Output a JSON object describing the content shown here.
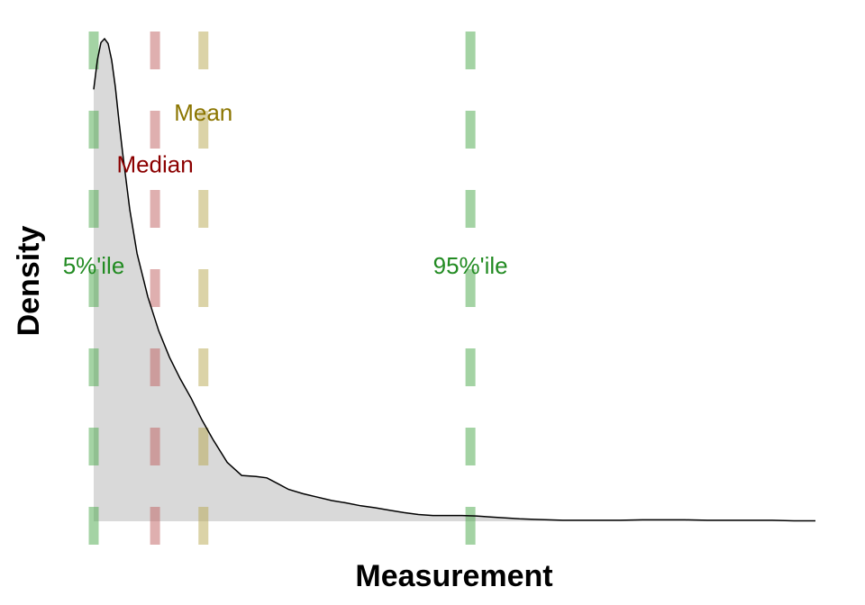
{
  "chart_data": {
    "type": "area",
    "xlabel": "Measurement",
    "ylabel": "Density",
    "x_axis_ticks": false,
    "y_axis_ticks": false,
    "grid": false,
    "legend": "none",
    "xlim": [
      0,
      1
    ],
    "ylim": [
      0,
      1
    ],
    "fill_color": "#d9d9d9",
    "line_color": "#000000",
    "density_curve": {
      "x": [
        0.0,
        0.005,
        0.01,
        0.015,
        0.02,
        0.025,
        0.03,
        0.035,
        0.04,
        0.05,
        0.06,
        0.075,
        0.09,
        0.105,
        0.12,
        0.135,
        0.15,
        0.165,
        0.185,
        0.205,
        0.225,
        0.24,
        0.255,
        0.27,
        0.29,
        0.31,
        0.33,
        0.35,
        0.37,
        0.39,
        0.41,
        0.43,
        0.45,
        0.47,
        0.49,
        0.51,
        0.53,
        0.55,
        0.57,
        0.59,
        0.61,
        0.63,
        0.65,
        0.67,
        0.69,
        0.71,
        0.73,
        0.76,
        0.79,
        0.82,
        0.85,
        0.88,
        0.91,
        0.94,
        0.97,
        1.0
      ],
      "y": [
        0.895,
        0.955,
        0.992,
        1.0,
        0.99,
        0.955,
        0.9,
        0.83,
        0.765,
        0.645,
        0.555,
        0.465,
        0.395,
        0.34,
        0.295,
        0.255,
        0.21,
        0.17,
        0.122,
        0.095,
        0.093,
        0.09,
        0.078,
        0.066,
        0.057,
        0.05,
        0.043,
        0.038,
        0.032,
        0.028,
        0.023,
        0.018,
        0.014,
        0.012,
        0.012,
        0.012,
        0.011,
        0.009,
        0.007,
        0.005,
        0.004,
        0.003,
        0.002,
        0.002,
        0.002,
        0.002,
        0.002,
        0.003,
        0.003,
        0.003,
        0.002,
        0.002,
        0.002,
        0.002,
        0.001,
        0.001
      ]
    },
    "reference_lines": [
      {
        "name": "5%'ile",
        "x": 0.0,
        "color": "#4aa84a",
        "label_color": "#228b22",
        "label_y": 0.53
      },
      {
        "name": "Median",
        "x": 0.085,
        "color": "#c06060",
        "label_color": "#8b0000",
        "label_y": 0.74
      },
      {
        "name": "Mean",
        "x": 0.152,
        "color": "#b8a850",
        "label_color": "#8b7500",
        "label_y": 0.847
      },
      {
        "name": "95%'ile",
        "x": 0.522,
        "color": "#4aa84a",
        "label_color": "#228b22",
        "label_y": 0.53
      }
    ]
  }
}
